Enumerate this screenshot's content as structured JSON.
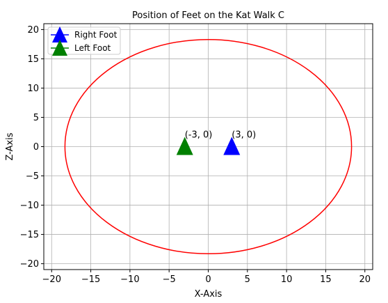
{
  "chart_data": {
    "type": "scatter",
    "title": "Position of Feet on the Kat Walk C",
    "xlabel": "X-Axis",
    "ylabel": "Z-Axis",
    "xlim": [
      -21,
      21
    ],
    "ylim": [
      -21,
      21
    ],
    "xticks": [
      -20,
      -15,
      -10,
      -5,
      0,
      5,
      10,
      15,
      20
    ],
    "yticks": [
      -20,
      -15,
      -10,
      -5,
      0,
      5,
      10,
      15,
      20
    ],
    "xtick_labels": [
      "−20",
      "−15",
      "−10",
      "−5",
      "0",
      "5",
      "10",
      "15",
      "20"
    ],
    "ytick_labels": [
      "−20",
      "−15",
      "−10",
      "−5",
      "0",
      "5",
      "10",
      "15",
      "20"
    ],
    "grid": true,
    "legend_position": "top-left",
    "circle": {
      "center": [
        0,
        0
      ],
      "radius": 18.3,
      "color": "#ff0000"
    },
    "series": [
      {
        "name": "Right Foot",
        "marker": "triangle",
        "color": "#0000ff",
        "points": [
          {
            "x": 3,
            "y": 0,
            "label": "(3, 0)"
          }
        ]
      },
      {
        "name": "Left Foot",
        "marker": "triangle",
        "color": "#008000",
        "points": [
          {
            "x": -3,
            "y": 0,
            "label": "(-3, 0)"
          }
        ]
      }
    ]
  }
}
